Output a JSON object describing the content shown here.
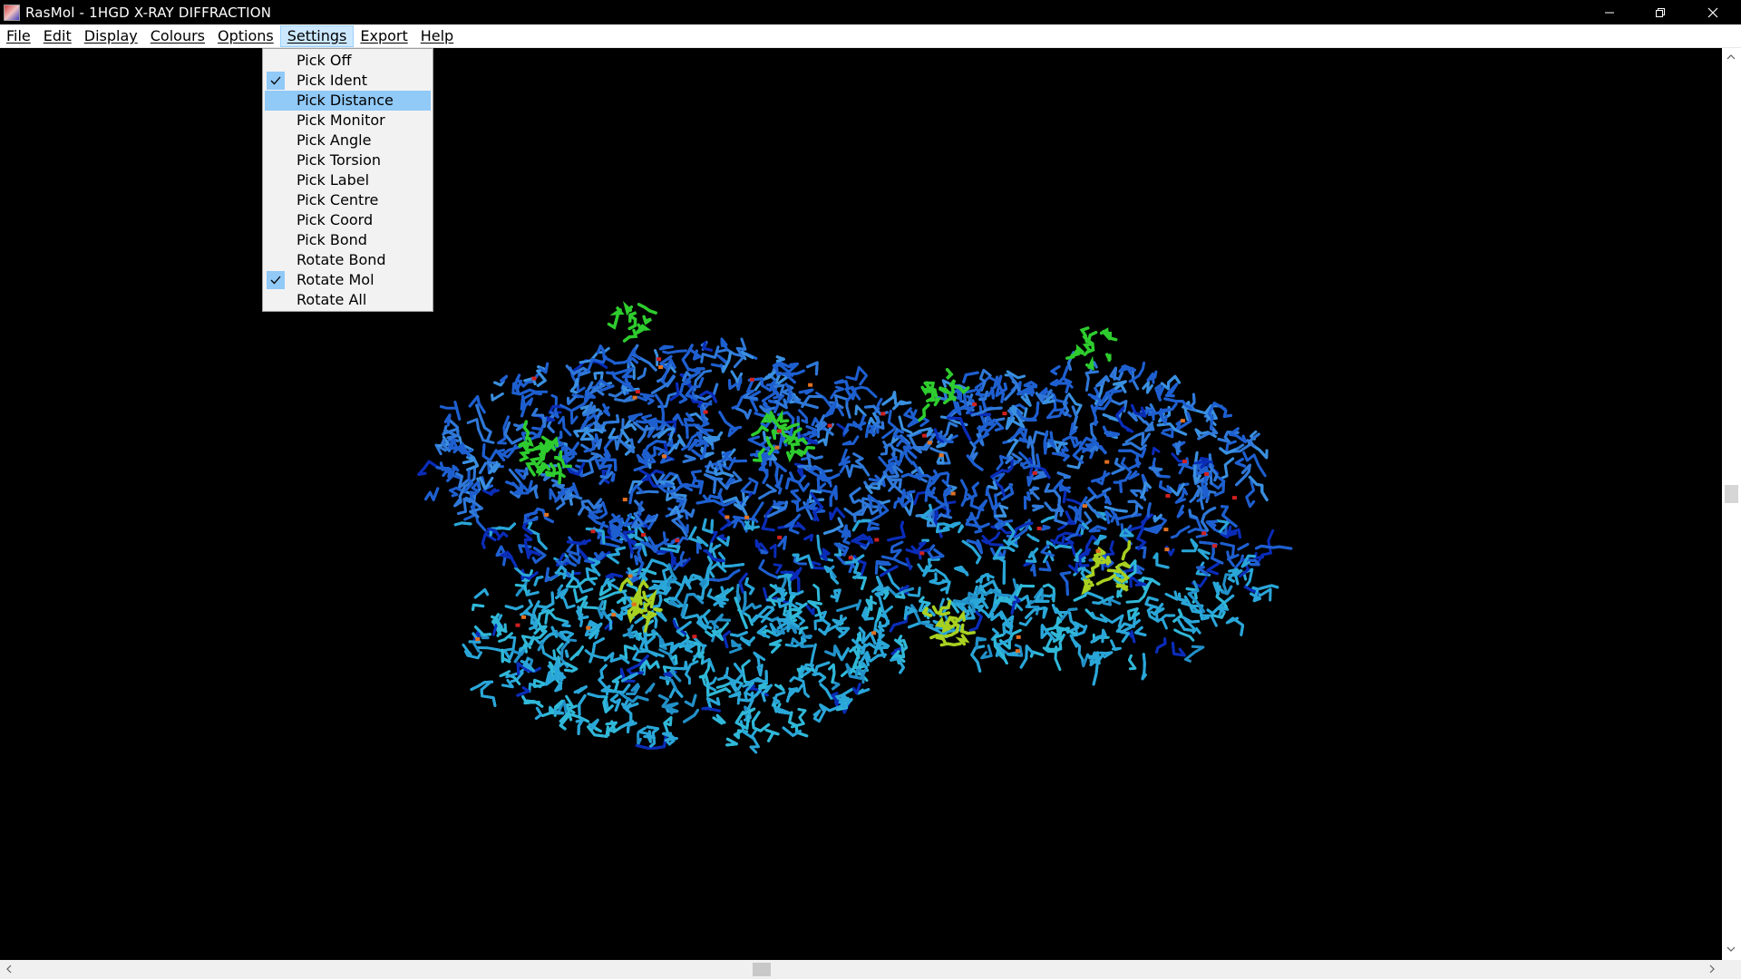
{
  "window": {
    "title": "RasMol - 1HGD X-RAY DIFFRACTION",
    "controls": {
      "minimize": "minimize-icon",
      "restore": "restore-icon",
      "close": "close-icon"
    }
  },
  "menubar": {
    "items": [
      "File",
      "Edit",
      "Display",
      "Colours",
      "Options",
      "Settings",
      "Export",
      "Help"
    ],
    "active": "Settings"
  },
  "settings_menu": {
    "items": [
      {
        "label": "Pick Off",
        "checked": false
      },
      {
        "label": "Pick Ident",
        "checked": true
      },
      {
        "label": "Pick Distance",
        "checked": false,
        "highlighted": true
      },
      {
        "label": "Pick Monitor",
        "checked": false
      },
      {
        "label": "Pick Angle",
        "checked": false
      },
      {
        "label": "Pick Torsion",
        "checked": false
      },
      {
        "label": "Pick Label",
        "checked": false
      },
      {
        "label": "Pick Centre",
        "checked": false
      },
      {
        "label": "Pick Coord",
        "checked": false
      },
      {
        "label": "Pick Bond",
        "checked": false
      },
      {
        "label": "Rotate Bond",
        "checked": false
      },
      {
        "label": "Rotate Mol",
        "checked": true
      },
      {
        "label": "Rotate All",
        "checked": false
      }
    ]
  },
  "molecule": {
    "colors": {
      "background": "#000000",
      "chain_a": "#1e5fd0",
      "chain_b": "#2aa6d8",
      "deep": "#0a2cb8",
      "ligand_green": "#2ecc2e",
      "ligand_yellow": "#a8d020",
      "accent_red": "#d02020",
      "accent_orange": "#e07020"
    }
  }
}
